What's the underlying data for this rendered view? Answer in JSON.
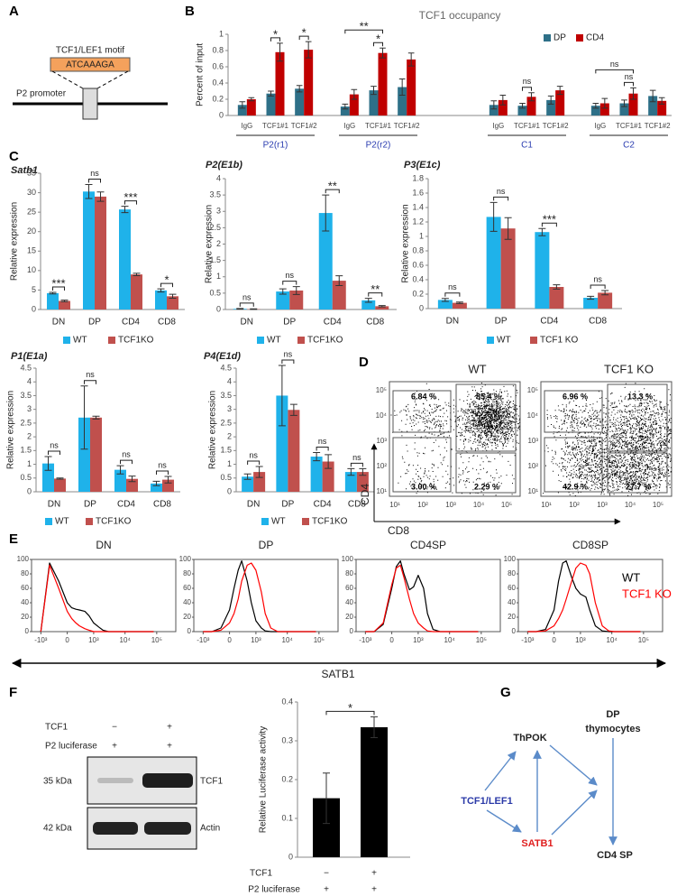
{
  "figure_a": {
    "panel": "A",
    "motif_label": "TCF1/LEF1 motif",
    "motif_sequence": "ATCAAAGA",
    "promoter_label": "P2 promoter"
  },
  "chart_data": [
    {
      "type": "bar",
      "panel": "B",
      "title": "TCF1 occupancy",
      "y_label": "Percent of input",
      "categories": [
        "IgG",
        "TCF1#1",
        "TCF1#2",
        "IgG",
        "TCF1#1",
        "TCF1#2",
        "IgG",
        "TCF1#1",
        "TCF1#2",
        "IgG",
        "TCF1#1",
        "TCF1#2"
      ],
      "groups": [
        "P2(r1)",
        "P2(r2)",
        "C1",
        "C2"
      ],
      "series": [
        {
          "name": "DP",
          "color": "#2e7088",
          "values": [
            0.13,
            0.27,
            0.33,
            0.11,
            0.31,
            0.35,
            0.13,
            0.12,
            0.19,
            0.12,
            0.15,
            0.24
          ],
          "errors": [
            0.04,
            0.03,
            0.04,
            0.03,
            0.05,
            0.1,
            0.05,
            0.03,
            0.05,
            0.03,
            0.04,
            0.07
          ]
        },
        {
          "name": "CD4",
          "color": "#c00000",
          "values": [
            0.2,
            0.78,
            0.81,
            0.26,
            0.77,
            0.69,
            0.19,
            0.23,
            0.31,
            0.15,
            0.27,
            0.18
          ],
          "errors": [
            0.02,
            0.11,
            0.1,
            0.06,
            0.06,
            0.08,
            0.06,
            0.05,
            0.05,
            0.06,
            0.07,
            0.04
          ]
        }
      ],
      "brackets": [
        {
          "label": "*",
          "from": 1,
          "to": 1
        },
        {
          "label": "*",
          "from": 2,
          "to": 2
        },
        {
          "label": "*",
          "from": 4,
          "to": 4
        },
        {
          "label": "**",
          "from": 3,
          "to": 4
        },
        {
          "label": "ns",
          "from": 7,
          "to": 7
        },
        {
          "label": "ns",
          "from": 10,
          "to": 10
        },
        {
          "label": "ns",
          "from": 9,
          "to": 10
        }
      ],
      "ylim": [
        0,
        1
      ],
      "yticks": [
        0,
        0.2,
        0.4,
        0.6,
        0.8,
        1
      ],
      "legend": "top right"
    },
    {
      "type": "bar",
      "panel": "C",
      "title": "Satb1",
      "y_label": "Relative expression",
      "categories": [
        "DN",
        "DP",
        "CD4",
        "CD8"
      ],
      "series": [
        {
          "name": "WT",
          "color": "#1fb2ea",
          "values": [
            4.2,
            30.3,
            25.7,
            4.9
          ],
          "errors": [
            0.2,
            1.8,
            0.8,
            0.4
          ]
        },
        {
          "name": "TCF1KO",
          "color": "#c0504d",
          "values": [
            2.2,
            29.0,
            9.0,
            3.4
          ],
          "errors": [
            0.2,
            1.2,
            0.3,
            0.5
          ]
        }
      ],
      "brackets": [
        {
          "label": "***",
          "from": 0,
          "to": 0
        },
        {
          "label": "ns",
          "from": 1,
          "to": 1
        },
        {
          "label": "***",
          "from": 2,
          "to": 2
        },
        {
          "label": "*",
          "from": 3,
          "to": 3
        }
      ],
      "ylim": [
        0,
        35
      ],
      "yticks": [
        0,
        5,
        10,
        15,
        20,
        25,
        30,
        35
      ],
      "legend": "bottom"
    },
    {
      "type": "bar",
      "title": "P2(E1b)",
      "y_label": "Relative expression",
      "categories": [
        "DN",
        "DP",
        "CD4",
        "CD8"
      ],
      "series": [
        {
          "name": "WT",
          "color": "#1fb2ea",
          "values": [
            0.02,
            0.55,
            2.95,
            0.28
          ],
          "errors": [
            0.01,
            0.08,
            0.55,
            0.06
          ]
        },
        {
          "name": "TCF1KO",
          "color": "#c0504d",
          "values": [
            0.01,
            0.58,
            0.88,
            0.1
          ],
          "errors": [
            0.01,
            0.12,
            0.15,
            0.02
          ]
        }
      ],
      "brackets": [
        {
          "label": "ns",
          "from": 0,
          "to": 0
        },
        {
          "label": "ns",
          "from": 1,
          "to": 1
        },
        {
          "label": "**",
          "from": 2,
          "to": 2
        },
        {
          "label": "**",
          "from": 3,
          "to": 3
        }
      ],
      "ylim": [
        0,
        4
      ],
      "yticks": [
        0,
        0.5,
        1,
        1.5,
        2,
        2.5,
        3,
        3.5,
        4
      ],
      "legend": "bottom"
    },
    {
      "type": "bar",
      "title": "P3(E1c)",
      "y_label": "Relative expression",
      "categories": [
        "DN",
        "DP",
        "CD4",
        "CD8"
      ],
      "series": [
        {
          "name": "WT",
          "color": "#1fb2ea",
          "values": [
            0.12,
            1.27,
            1.06,
            0.15
          ],
          "errors": [
            0.02,
            0.2,
            0.05,
            0.02
          ]
        },
        {
          "name": "TCF1 KO",
          "color": "#c0504d",
          "values": [
            0.08,
            1.11,
            0.3,
            0.22
          ],
          "errors": [
            0.01,
            0.15,
            0.03,
            0.03
          ]
        }
      ],
      "brackets": [
        {
          "label": "ns",
          "from": 0,
          "to": 0
        },
        {
          "label": "ns",
          "from": 1,
          "to": 1
        },
        {
          "label": "***",
          "from": 2,
          "to": 2
        },
        {
          "label": "ns",
          "from": 3,
          "to": 3
        }
      ],
      "ylim": [
        0,
        1.8
      ],
      "yticks": [
        0,
        0.2,
        0.4,
        0.6,
        0.8,
        1,
        1.2,
        1.4,
        1.6,
        1.8
      ],
      "legend": "bottom"
    },
    {
      "type": "bar",
      "title": "P1(E1a)",
      "y_label": "Relative expression",
      "categories": [
        "DN",
        "DP",
        "CD4",
        "CD8"
      ],
      "series": [
        {
          "name": "WT",
          "color": "#1fb2ea",
          "values": [
            1.03,
            2.7,
            0.8,
            0.3
          ],
          "errors": [
            0.25,
            1.15,
            0.15,
            0.08
          ]
        },
        {
          "name": "TCF1KO",
          "color": "#c0504d",
          "values": [
            0.48,
            2.7,
            0.47,
            0.44
          ],
          "errors": [
            0.02,
            0.05,
            0.1,
            0.12
          ]
        }
      ],
      "brackets": [
        {
          "label": "ns",
          "from": 0,
          "to": 0
        },
        {
          "label": "ns",
          "from": 1,
          "to": 1
        },
        {
          "label": "ns",
          "from": 2,
          "to": 2
        },
        {
          "label": "ns",
          "from": 3,
          "to": 3
        }
      ],
      "ylim": [
        0,
        4.5
      ],
      "yticks": [
        0,
        0.5,
        1,
        1.5,
        2,
        2.5,
        3,
        3.5,
        4,
        4.5
      ],
      "legend": "bottom"
    },
    {
      "type": "bar",
      "title": "P4(E1d)",
      "y_label": "Relative expression",
      "categories": [
        "DN",
        "DP",
        "CD4",
        "CD8"
      ],
      "series": [
        {
          "name": "WT",
          "color": "#1fb2ea",
          "values": [
            0.55,
            3.5,
            1.28,
            0.72
          ],
          "errors": [
            0.1,
            1.1,
            0.15,
            0.12
          ]
        },
        {
          "name": "TCF1KO",
          "color": "#c0504d",
          "values": [
            0.72,
            2.98,
            1.1,
            0.72
          ],
          "errors": [
            0.2,
            0.2,
            0.25,
            0.12
          ]
        }
      ],
      "brackets": [
        {
          "label": "ns",
          "from": 0,
          "to": 0
        },
        {
          "label": "ns",
          "from": 1,
          "to": 1
        },
        {
          "label": "ns",
          "from": 2,
          "to": 2
        },
        {
          "label": "ns",
          "from": 3,
          "to": 3
        }
      ],
      "ylim": [
        0,
        4.5
      ],
      "yticks": [
        0,
        0.5,
        1,
        1.5,
        2,
        2.5,
        3,
        3.5,
        4,
        4.5
      ],
      "legend": "bottom"
    },
    {
      "type": "line",
      "title": "DN",
      "xscale": "biexponential",
      "x": [
        -1000,
        -500,
        -200,
        0,
        100,
        200,
        300,
        500,
        700,
        1000,
        1500,
        2000,
        3000,
        5000,
        8000,
        12000,
        30000,
        80000
      ],
      "series": [
        {
          "color": "#000000",
          "values": [
            0,
            95,
            70,
            40,
            33,
            31,
            30,
            28,
            22,
            12,
            6,
            2,
            0,
            0,
            0,
            0,
            0,
            0
          ]
        },
        {
          "color": "#ff0000",
          "values": [
            0,
            92,
            60,
            28,
            18,
            12,
            8,
            4,
            2,
            0,
            0,
            0,
            0,
            0,
            0,
            0,
            0,
            0
          ]
        }
      ],
      "xlim": [
        -2000,
        400000
      ],
      "xticks": [
        {
          "value": -1000,
          "label": "-10³"
        },
        0,
        {
          "value": 1000,
          "label": "10³"
        },
        {
          "value": 10000,
          "label": "10⁴"
        },
        {
          "value": 100000,
          "label": "10⁵"
        }
      ],
      "ylim": [
        0,
        100
      ],
      "yticks": [
        0,
        20,
        40,
        60,
        80,
        100
      ]
    },
    {
      "type": "line",
      "title": "DP",
      "xscale": "biexponential",
      "x": [
        -1000,
        -500,
        -200,
        0,
        100,
        200,
        300,
        500,
        700,
        1000,
        1500,
        2000,
        3000,
        5000,
        8000,
        12000,
        30000,
        80000
      ],
      "series": [
        {
          "color": "#000000",
          "values": [
            0,
            0,
            5,
            30,
            60,
            85,
            98,
            70,
            40,
            15,
            5,
            1,
            0,
            0,
            0,
            0,
            0,
            0
          ]
        },
        {
          "color": "#ff0000",
          "values": [
            0,
            0,
            2,
            12,
            25,
            45,
            70,
            92,
            95,
            85,
            55,
            25,
            5,
            0,
            0,
            0,
            0,
            0
          ]
        }
      ],
      "xlim": [
        -2000,
        400000
      ],
      "xticks": [
        {
          "value": -1000,
          "label": "-10³"
        },
        0,
        {
          "value": 1000,
          "label": "10³"
        },
        {
          "value": 10000,
          "label": "10⁴"
        },
        {
          "value": 100000,
          "label": "10⁵"
        }
      ],
      "ylim": [
        0,
        100
      ],
      "yticks": [
        0,
        20,
        40,
        60,
        80,
        100
      ]
    },
    {
      "type": "line",
      "title": "CD4SP",
      "xscale": "biexponential",
      "x": [
        -1000,
        -500,
        -200,
        0,
        100,
        200,
        300,
        500,
        700,
        1000,
        1500,
        2000,
        3000,
        5000,
        8000,
        12000,
        30000,
        80000
      ],
      "series": [
        {
          "color": "#000000",
          "values": [
            0,
            0,
            10,
            60,
            90,
            98,
            80,
            58,
            62,
            78,
            60,
            25,
            3,
            0,
            0,
            0,
            0,
            0
          ]
        },
        {
          "color": "#ff0000",
          "values": [
            0,
            0,
            12,
            65,
            88,
            92,
            75,
            45,
            25,
            12,
            5,
            1,
            0,
            0,
            0,
            0,
            0,
            0
          ]
        }
      ],
      "xlim": [
        -2000,
        400000
      ],
      "xticks": [
        {
          "value": -1000,
          "label": "-10³"
        },
        0,
        {
          "value": 1000,
          "label": "10³"
        },
        {
          "value": 10000,
          "label": "10⁴"
        },
        {
          "value": 100000,
          "label": "10⁵"
        }
      ],
      "ylim": [
        0,
        100
      ],
      "yticks": [
        0,
        20,
        40,
        60,
        80,
        100
      ]
    },
    {
      "type": "line",
      "title": "CD8SP",
      "xscale": "biexponential",
      "x": [
        -1000,
        -500,
        -200,
        0,
        100,
        200,
        300,
        500,
        700,
        1000,
        1500,
        2000,
        3000,
        5000,
        8000,
        12000,
        30000,
        80000
      ],
      "series": [
        {
          "name": "WT",
          "color": "#000000",
          "values": [
            0,
            0,
            3,
            30,
            70,
            95,
            98,
            75,
            60,
            52,
            48,
            30,
            8,
            1,
            0,
            0,
            0,
            0
          ]
        },
        {
          "name": "TCF1 KO",
          "color": "#ff0000",
          "values": [
            0,
            0,
            1,
            8,
            18,
            30,
            45,
            70,
            88,
            95,
            92,
            80,
            40,
            8,
            1,
            0,
            0,
            0
          ]
        }
      ],
      "xlim": [
        -2000,
        400000
      ],
      "xticks": [
        {
          "value": -1000,
          "label": "-10³"
        },
        0,
        {
          "value": 1000,
          "label": "10³"
        },
        {
          "value": 10000,
          "label": "10⁴"
        },
        {
          "value": 100000,
          "label": "10⁵"
        }
      ],
      "ylim": [
        0,
        100
      ],
      "yticks": [
        0,
        20,
        40,
        60,
        80,
        100
      ],
      "legend": "top right"
    },
    {
      "type": "bar",
      "y_label": "Relative Luciferase activity",
      "categories": [
        null,
        null
      ],
      "values": [
        0.152,
        0.335
      ],
      "errors": [
        0.065,
        0.027
      ],
      "color": "#000000",
      "brackets": [
        {
          "label": "*",
          "from": 0,
          "to": 1
        }
      ],
      "conditions": [
        {
          "name": "TCF1",
          "labels": [
            "−",
            "+"
          ]
        },
        {
          "name": "P2 luciferase",
          "labels": [
            "+",
            "+"
          ]
        }
      ],
      "ylim": [
        0,
        0.4
      ],
      "yticks": [
        0,
        0.1,
        0.2,
        0.3,
        0.4
      ]
    }
  ],
  "flow_d": {
    "panel": "D",
    "x_label": "CD8",
    "y_label": "CD4",
    "y_ticks": [
      "10⁵",
      "10⁴",
      "10³",
      "10²",
      "10¹"
    ],
    "x_ticks": [
      "10¹",
      "10²",
      "10³",
      "10⁴",
      "10⁵"
    ],
    "plots": [
      {
        "title": "WT",
        "quadrants": [
          "6.84 %",
          "85.4 %",
          "3.00 %",
          "2.29 %"
        ]
      },
      {
        "title": "TCF1 KO",
        "quadrants": [
          "6.96 %",
          "13.3 %",
          "42.9 %",
          "27.7 %"
        ]
      }
    ]
  },
  "figure_e": {
    "panel": "E",
    "x_label": "SATB1"
  },
  "figure_f": {
    "panel": "F",
    "blot": {
      "conditions": [
        {
          "name": "TCF1",
          "labels": [
            "−",
            "+"
          ]
        },
        {
          "name": "P2 luciferase",
          "labels": [
            "+",
            "+"
          ]
        }
      ],
      "bands": [
        {
          "size": "35 kDa",
          "name": "TCF1"
        },
        {
          "size": "42 kDa",
          "name": "Actin"
        }
      ]
    }
  },
  "diagram_g": {
    "panel": "G",
    "nodes": [
      {
        "lines": [
          "DP",
          "thymocytes"
        ]
      },
      {
        "label": "ThPOK"
      },
      {
        "label": "TCF1/LEF1"
      },
      {
        "label": "SATB1"
      },
      {
        "label": "CD4 SP"
      }
    ]
  }
}
